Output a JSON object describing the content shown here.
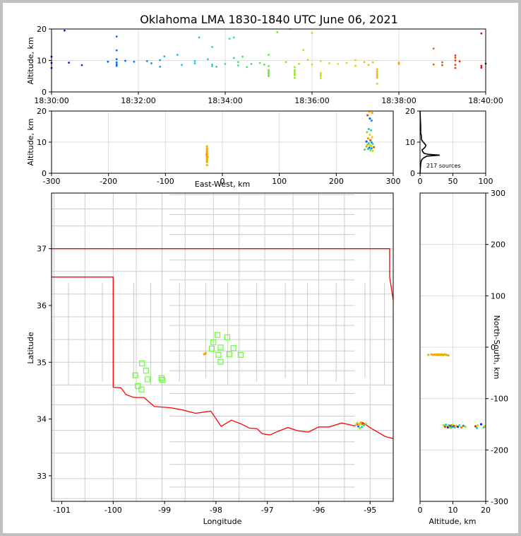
{
  "title": "Oklahoma LMA 1830-1840 UTC June 06, 2021",
  "chart_data": [
    {
      "id": "time_height",
      "type": "scatter",
      "xlabel": "",
      "ylabel": "Altitude, km",
      "x_ticks": [
        "18:30:00",
        "18:32:00",
        "18:34:00",
        "18:36:00",
        "18:38:00",
        "18:40:00"
      ],
      "xlim_minutes": [
        0,
        10
      ],
      "ylim": [
        0,
        20
      ],
      "y_ticks": [
        0,
        10,
        20
      ],
      "grid": true,
      "color_by": "time",
      "points_min_alt": [
        [
          0.0,
          11.2
        ],
        [
          0.0,
          9.2
        ],
        [
          0.0,
          7.6
        ],
        [
          0.3,
          19.5
        ],
        [
          0.4,
          9.3
        ],
        [
          0.7,
          8.5
        ],
        [
          1.3,
          9.6
        ],
        [
          1.5,
          17.6
        ],
        [
          1.5,
          13.2
        ],
        [
          1.5,
          10.4
        ],
        [
          1.5,
          9.4
        ],
        [
          1.5,
          8.8
        ],
        [
          1.5,
          8.3
        ],
        [
          1.7,
          9.9
        ],
        [
          1.9,
          9.6
        ],
        [
          2.2,
          9.8
        ],
        [
          2.3,
          9.1
        ],
        [
          2.5,
          10.1
        ],
        [
          2.5,
          8.0
        ],
        [
          2.6,
          11.3
        ],
        [
          2.9,
          11.8
        ],
        [
          3.0,
          8.6
        ],
        [
          3.3,
          9.8
        ],
        [
          3.3,
          9.1
        ],
        [
          3.4,
          17.3
        ],
        [
          3.6,
          10.4
        ],
        [
          3.7,
          14.3
        ],
        [
          3.7,
          8.7
        ],
        [
          3.7,
          8.2
        ],
        [
          3.8,
          8.0
        ],
        [
          4.0,
          8.9
        ],
        [
          4.1,
          16.9
        ],
        [
          4.2,
          17.3
        ],
        [
          4.2,
          10.8
        ],
        [
          4.3,
          9.5
        ],
        [
          4.3,
          8.4
        ],
        [
          4.4,
          11.2
        ],
        [
          4.5,
          7.9
        ],
        [
          4.6,
          8.9
        ],
        [
          4.8,
          9.2
        ],
        [
          4.9,
          8.7
        ],
        [
          5.0,
          11.8
        ],
        [
          5.0,
          8.2
        ],
        [
          5.0,
          7.0
        ],
        [
          5.0,
          6.5
        ],
        [
          5.0,
          6.0
        ],
        [
          5.0,
          5.5
        ],
        [
          5.0,
          5.0
        ],
        [
          5.2,
          19.0
        ],
        [
          5.4,
          9.5
        ],
        [
          5.5,
          20.0
        ],
        [
          5.6,
          7.9
        ],
        [
          5.6,
          7.0
        ],
        [
          5.6,
          6.4
        ],
        [
          5.6,
          5.8
        ],
        [
          5.6,
          5.3
        ],
        [
          5.6,
          4.5
        ],
        [
          5.7,
          8.9
        ],
        [
          5.8,
          13.3
        ],
        [
          5.9,
          10.2
        ],
        [
          6.0,
          18.7
        ],
        [
          6.0,
          8.7
        ],
        [
          6.2,
          9.8
        ],
        [
          6.2,
          6.0
        ],
        [
          6.2,
          5.5
        ],
        [
          6.2,
          5.0
        ],
        [
          6.2,
          4.3
        ],
        [
          6.4,
          9.1
        ],
        [
          6.6,
          8.9
        ],
        [
          6.8,
          9.2
        ],
        [
          7.0,
          10.1
        ],
        [
          7.0,
          8.3
        ],
        [
          7.2,
          9.5
        ],
        [
          7.3,
          8.6
        ],
        [
          7.4,
          9.4
        ],
        [
          7.5,
          7.2
        ],
        [
          7.5,
          6.6
        ],
        [
          7.5,
          6.0
        ],
        [
          7.5,
          5.5
        ],
        [
          7.5,
          5.0
        ],
        [
          7.5,
          4.5
        ],
        [
          7.5,
          2.6
        ],
        [
          8.0,
          9.3
        ],
        [
          8.0,
          8.9
        ],
        [
          8.8,
          13.8
        ],
        [
          8.8,
          8.7
        ],
        [
          9.0,
          9.4
        ],
        [
          9.0,
          8.5
        ],
        [
          9.3,
          11.6
        ],
        [
          9.3,
          10.9
        ],
        [
          9.3,
          10.0
        ],
        [
          9.3,
          8.6
        ],
        [
          9.3,
          7.6
        ],
        [
          9.4,
          9.7
        ],
        [
          9.9,
          18.6
        ],
        [
          9.9,
          8.3
        ],
        [
          9.9,
          7.7
        ],
        [
          10.0,
          9.0
        ]
      ]
    },
    {
      "id": "ew_height",
      "type": "scatter",
      "xlabel": "East-West, km",
      "ylabel": "Altitude, km",
      "xlim": [
        -300,
        300
      ],
      "x_ticks": [
        -300,
        -200,
        -100,
        0,
        100,
        200,
        300
      ],
      "ylim": [
        0,
        20
      ],
      "y_ticks": [
        0,
        10,
        20
      ],
      "grid": true,
      "points": [
        [
          -27,
          8.6
        ],
        [
          -27,
          7.9
        ],
        [
          -27,
          7.4
        ],
        [
          -27,
          7.0
        ],
        [
          -27,
          6.6
        ],
        [
          -27,
          6.2
        ],
        [
          -27,
          5.8
        ],
        [
          -27,
          5.4
        ],
        [
          -27,
          5.0
        ],
        [
          -27,
          4.6
        ],
        [
          -27,
          4.2
        ],
        [
          -27,
          3.6
        ],
        [
          -27,
          2.6
        ],
        [
          -28,
          6.0
        ],
        [
          -26,
          5.2
        ],
        [
          258,
          19.8
        ],
        [
          263,
          19.4
        ],
        [
          255,
          18.6
        ],
        [
          259,
          17.6
        ],
        [
          262,
          16.9
        ],
        [
          257,
          14.2
        ],
        [
          261,
          13.8
        ],
        [
          254,
          13.2
        ],
        [
          259,
          12.4
        ],
        [
          263,
          11.6
        ],
        [
          256,
          11.2
        ],
        [
          260,
          10.6
        ],
        [
          253,
          10.2
        ],
        [
          262,
          9.9
        ],
        [
          257,
          9.6
        ],
        [
          264,
          9.4
        ],
        [
          255,
          9.2
        ],
        [
          259,
          9.0
        ],
        [
          261,
          8.8
        ],
        [
          253,
          8.6
        ],
        [
          266,
          8.4
        ],
        [
          258,
          8.2
        ],
        [
          262,
          8.0
        ],
        [
          256,
          7.8
        ],
        [
          250,
          7.6
        ],
        [
          260,
          7.4
        ],
        [
          264,
          7.2
        ]
      ]
    },
    {
      "id": "alt_histogram",
      "type": "line",
      "xlabel": "",
      "xlim": [
        0,
        100
      ],
      "x_ticks": [
        0,
        50,
        100
      ],
      "ylim": [
        0,
        20
      ],
      "y_ticks": [
        0,
        10,
        20
      ],
      "annotation": "217 sources",
      "grid": true,
      "x_counts": [
        0,
        1,
        2,
        3,
        6,
        8,
        10,
        30,
        12,
        6,
        4,
        3,
        6,
        8,
        9,
        7,
        5,
        3,
        2,
        2,
        1,
        1,
        0
      ],
      "y_alt": [
        0,
        3,
        4,
        4.5,
        5,
        5.2,
        5.5,
        5.8,
        6.1,
        6.4,
        7,
        7.5,
        8,
        8.5,
        9,
        9.5,
        10,
        10.5,
        11,
        12,
        13,
        15,
        20
      ]
    },
    {
      "id": "plan_view",
      "type": "map",
      "xlabel": "Longitude",
      "ylabel": "Latitude",
      "xlim": [
        -101.2,
        -94.55
      ],
      "ylim": [
        32.55,
        37.98
      ],
      "x_ticks": [
        -101,
        -100,
        -99,
        -98,
        -97,
        -96,
        -95
      ],
      "y_ticks": [
        33,
        34,
        35,
        36,
        37
      ],
      "stations_lonlat": [
        [
          -97.97,
          35.48
        ],
        [
          -97.78,
          35.44
        ],
        [
          -98.05,
          35.35
        ],
        [
          -97.91,
          35.26
        ],
        [
          -98.08,
          35.24
        ],
        [
          -97.66,
          35.25
        ],
        [
          -97.95,
          35.13
        ],
        [
          -97.74,
          35.14
        ],
        [
          -97.52,
          35.13
        ],
        [
          -97.91,
          35.01
        ],
        [
          -99.44,
          34.98
        ],
        [
          -99.36,
          34.85
        ],
        [
          -99.57,
          34.77
        ],
        [
          -99.33,
          34.7
        ],
        [
          -99.06,
          34.72
        ],
        [
          -99.04,
          34.69
        ],
        [
          -99.52,
          34.58
        ],
        [
          -99.45,
          34.52
        ]
      ],
      "sources_lonlat": [
        [
          -98.21,
          35.15
        ],
        [
          -98.23,
          35.14
        ],
        [
          -98.2,
          35.16
        ],
        [
          -95.25,
          33.93
        ],
        [
          -95.21,
          33.9
        ],
        [
          -95.18,
          33.94
        ],
        [
          -95.15,
          33.91
        ],
        [
          -95.23,
          33.87
        ],
        [
          -95.16,
          33.86
        ],
        [
          -95.12,
          33.89
        ],
        [
          -95.2,
          33.84
        ],
        [
          -95.08,
          33.92
        ],
        [
          -95.27,
          33.9
        ]
      ]
    },
    {
      "id": "ns_height",
      "type": "scatter",
      "xlabel": "Altitude, km",
      "ylabel": "North-South, km",
      "xlim": [
        0,
        20
      ],
      "x_ticks": [
        0,
        10,
        20
      ],
      "ylim": [
        -300,
        300
      ],
      "y_ticks": [
        -300,
        -200,
        -100,
        0,
        100,
        200,
        300
      ],
      "grid": true,
      "points": [
        [
          2.5,
          -15
        ],
        [
          3.5,
          -14
        ],
        [
          4.0,
          -15
        ],
        [
          4.5,
          -14
        ],
        [
          5.0,
          -15
        ],
        [
          5.3,
          -14
        ],
        [
          5.6,
          -15
        ],
        [
          5.9,
          -14
        ],
        [
          6.2,
          -15
        ],
        [
          6.5,
          -14
        ],
        [
          6.8,
          -15
        ],
        [
          7.2,
          -15
        ],
        [
          7.5,
          -14
        ],
        [
          8.0,
          -15
        ],
        [
          8.6,
          -16
        ],
        [
          7.2,
          -152
        ],
        [
          7.6,
          -155
        ],
        [
          7.9,
          -151
        ],
        [
          8.2,
          -154
        ],
        [
          8.5,
          -156
        ],
        [
          8.8,
          -152
        ],
        [
          9.0,
          -155
        ],
        [
          9.2,
          -153
        ],
        [
          9.4,
          -157
        ],
        [
          9.6,
          -152
        ],
        [
          9.8,
          -155
        ],
        [
          10.0,
          -151
        ],
        [
          10.3,
          -154
        ],
        [
          10.6,
          -156
        ],
        [
          11.0,
          -153
        ],
        [
          11.5,
          -155
        ],
        [
          12.0,
          -152
        ],
        [
          12.6,
          -156
        ],
        [
          13.2,
          -153
        ],
        [
          13.8,
          -155
        ],
        [
          16.9,
          -154
        ],
        [
          17.3,
          -157
        ],
        [
          17.6,
          -152
        ],
        [
          18.6,
          -150
        ],
        [
          19.4,
          -156
        ],
        [
          19.8,
          -154
        ]
      ]
    }
  ]
}
